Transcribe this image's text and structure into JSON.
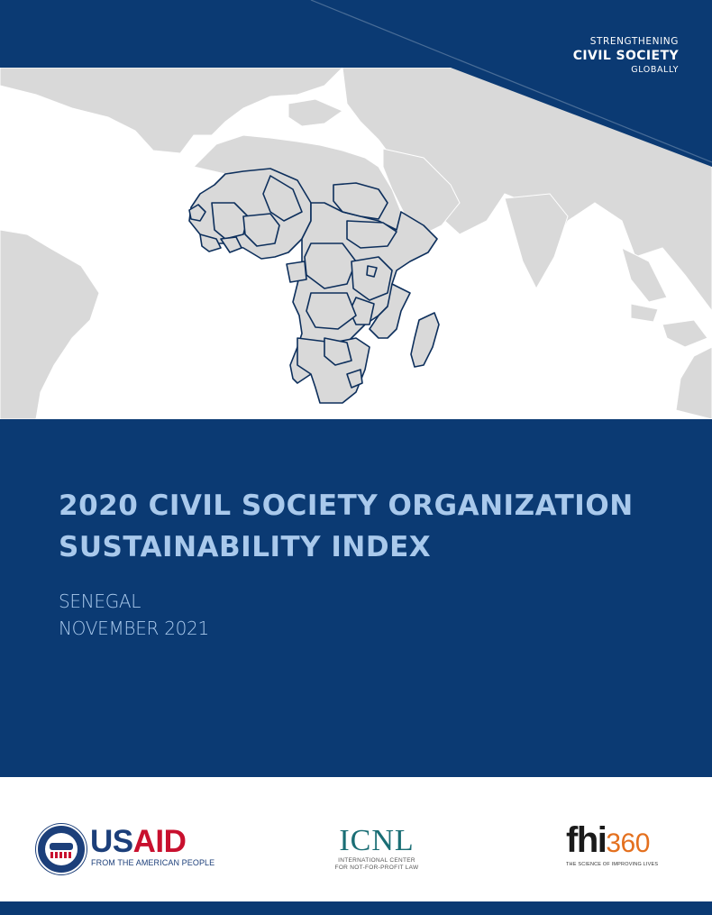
{
  "tagline": {
    "line1": "STRENGTHENING",
    "line2": "CIVIL SOCIETY",
    "line3": "GLOBALLY"
  },
  "report": {
    "title_line1": "2020 CIVIL SOCIETY ORGANIZATION",
    "title_line2": "SUSTAINABILITY INDEX",
    "country": "SENEGAL",
    "date": "NOVEMBER 2021"
  },
  "logos": {
    "usaid": {
      "word_us": "US",
      "word_aid": "AID",
      "tagline": "FROM THE AMERICAN PEOPLE"
    },
    "icnl": {
      "word": "ICNL",
      "line1": "INTERNATIONAL CENTER",
      "line2": "FOR NOT-FOR-PROFIT LAW"
    },
    "fhi360": {
      "word_fhi": "fhi",
      "word_num": "360",
      "tagline": "THE SCIENCE OF IMPROVING LIVES"
    }
  },
  "colors": {
    "navy": "#0b3a73",
    "title_text": "#a9c9ec",
    "land": "#d9d9d9",
    "border": "#0d2f5c"
  }
}
